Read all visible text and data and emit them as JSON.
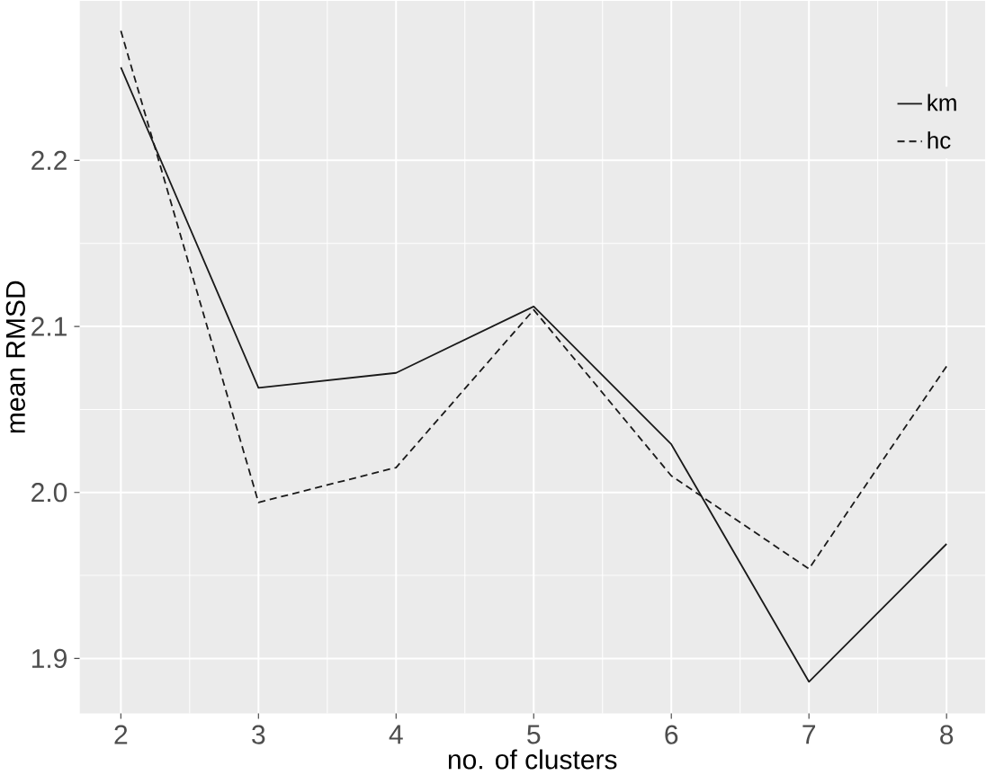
{
  "chart_data": {
    "type": "line",
    "xlabel": "no. of clusters",
    "ylabel": "mean RMSD",
    "x": [
      2,
      3,
      4,
      5,
      6,
      7,
      8
    ],
    "series": [
      {
        "name": "km",
        "color": "#1a1a1a",
        "line_style": "solid",
        "values": [
          2.256,
          2.063,
          2.072,
          2.112,
          2.029,
          1.886,
          1.969
        ]
      },
      {
        "name": "hc",
        "color": "#1a1a1a",
        "line_style": "dashed",
        "values": [
          2.278,
          1.994,
          2.015,
          2.11,
          2.01,
          1.954,
          2.076
        ]
      }
    ],
    "xlim": [
      1.7,
      8.28
    ],
    "ylim": [
      1.867,
      2.296
    ],
    "xticks": [
      2,
      3,
      4,
      5,
      6,
      7,
      8
    ],
    "yticks": [
      1.9,
      {
        "value": 2.0,
        "label": "2.0"
      },
      2.1,
      2.2
    ],
    "grid": true,
    "legend": "top right",
    "marker": "none"
  }
}
